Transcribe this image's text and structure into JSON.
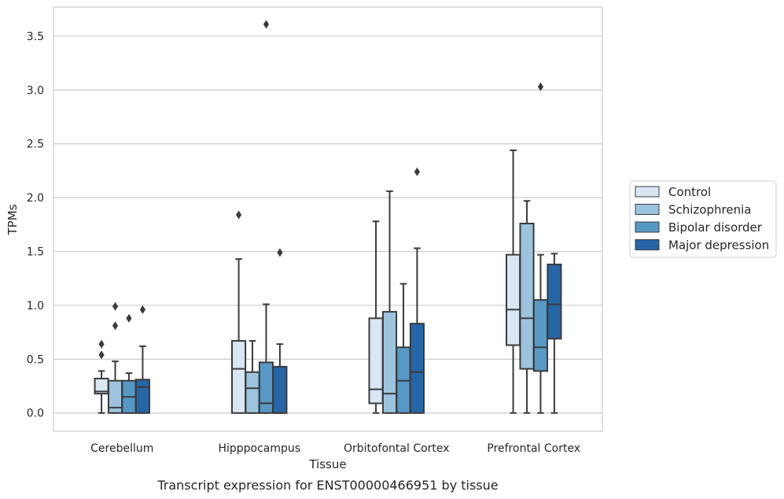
{
  "chart_data": {
    "type": "box",
    "title": "",
    "caption": "Transcript expression for ENST00000466951 by tissue",
    "xlabel": "Tissue",
    "ylabel": "TPMs",
    "ylim": [
      -0.17,
      3.77
    ],
    "yticks": [
      "0.0",
      "0.5",
      "1.0",
      "1.5",
      "2.0",
      "2.5",
      "3.0",
      "3.5"
    ],
    "grid": "horizontal",
    "legend_position": "right",
    "categories": [
      "Cerebellum",
      "Hipppocampus",
      "Orbitofontal Cortex",
      "Prefrontal Cortex"
    ],
    "series": [
      {
        "name": "Control",
        "color": "#d9e6f3",
        "boxes": [
          {
            "whislo": 0.0,
            "q1": 0.18,
            "med": 0.2,
            "q3": 0.32,
            "whishi": 0.39,
            "fliers": [
              0.54,
              0.64
            ]
          },
          {
            "whislo": 0.0,
            "q1": 0.0,
            "med": 0.41,
            "q3": 0.67,
            "whishi": 1.43,
            "fliers": [
              1.84
            ]
          },
          {
            "whislo": 0.0,
            "q1": 0.09,
            "med": 0.22,
            "q3": 0.88,
            "whishi": 1.78,
            "fliers": []
          },
          {
            "whislo": 0.0,
            "q1": 0.63,
            "med": 0.96,
            "q3": 1.47,
            "whishi": 2.44,
            "fliers": []
          }
        ]
      },
      {
        "name": "Schizophrenia",
        "color": "#9cc4df",
        "boxes": [
          {
            "whislo": 0.0,
            "q1": 0.0,
            "med": 0.05,
            "q3": 0.3,
            "whishi": 0.48,
            "fliers": [
              0.81,
              0.99
            ]
          },
          {
            "whislo": 0.0,
            "q1": 0.0,
            "med": 0.23,
            "q3": 0.38,
            "whishi": 0.67,
            "fliers": []
          },
          {
            "whislo": 0.0,
            "q1": 0.0,
            "med": 0.18,
            "q3": 0.94,
            "whishi": 2.06,
            "fliers": []
          },
          {
            "whislo": 0.0,
            "q1": 0.41,
            "med": 0.88,
            "q3": 1.76,
            "whishi": 1.97,
            "fliers": []
          }
        ]
      },
      {
        "name": "Bipolar disorder",
        "color": "#5799c6",
        "boxes": [
          {
            "whislo": 0.0,
            "q1": 0.0,
            "med": 0.15,
            "q3": 0.3,
            "whishi": 0.37,
            "fliers": [
              0.88
            ]
          },
          {
            "whislo": 0.0,
            "q1": 0.0,
            "med": 0.09,
            "q3": 0.47,
            "whishi": 1.01,
            "fliers": [
              3.61
            ]
          },
          {
            "whislo": 0.0,
            "q1": 0.0,
            "med": 0.3,
            "q3": 0.61,
            "whishi": 1.2,
            "fliers": []
          },
          {
            "whislo": 0.0,
            "q1": 0.39,
            "med": 0.61,
            "q3": 1.05,
            "whishi": 1.47,
            "fliers": [
              3.03
            ]
          }
        ]
      },
      {
        "name": "Major depression",
        "color": "#2566a8",
        "boxes": [
          {
            "whislo": 0.0,
            "q1": 0.0,
            "med": 0.24,
            "q3": 0.31,
            "whishi": 0.62,
            "fliers": [
              0.96
            ]
          },
          {
            "whislo": 0.0,
            "q1": 0.0,
            "med": 0.0,
            "q3": 0.43,
            "whishi": 0.64,
            "fliers": [
              1.49
            ]
          },
          {
            "whislo": 0.0,
            "q1": 0.0,
            "med": 0.38,
            "q3": 0.83,
            "whishi": 1.53,
            "fliers": [
              2.24
            ]
          },
          {
            "whislo": 0.0,
            "q1": 0.69,
            "med": 1.01,
            "q3": 1.38,
            "whishi": 1.48,
            "fliers": []
          }
        ]
      }
    ]
  }
}
